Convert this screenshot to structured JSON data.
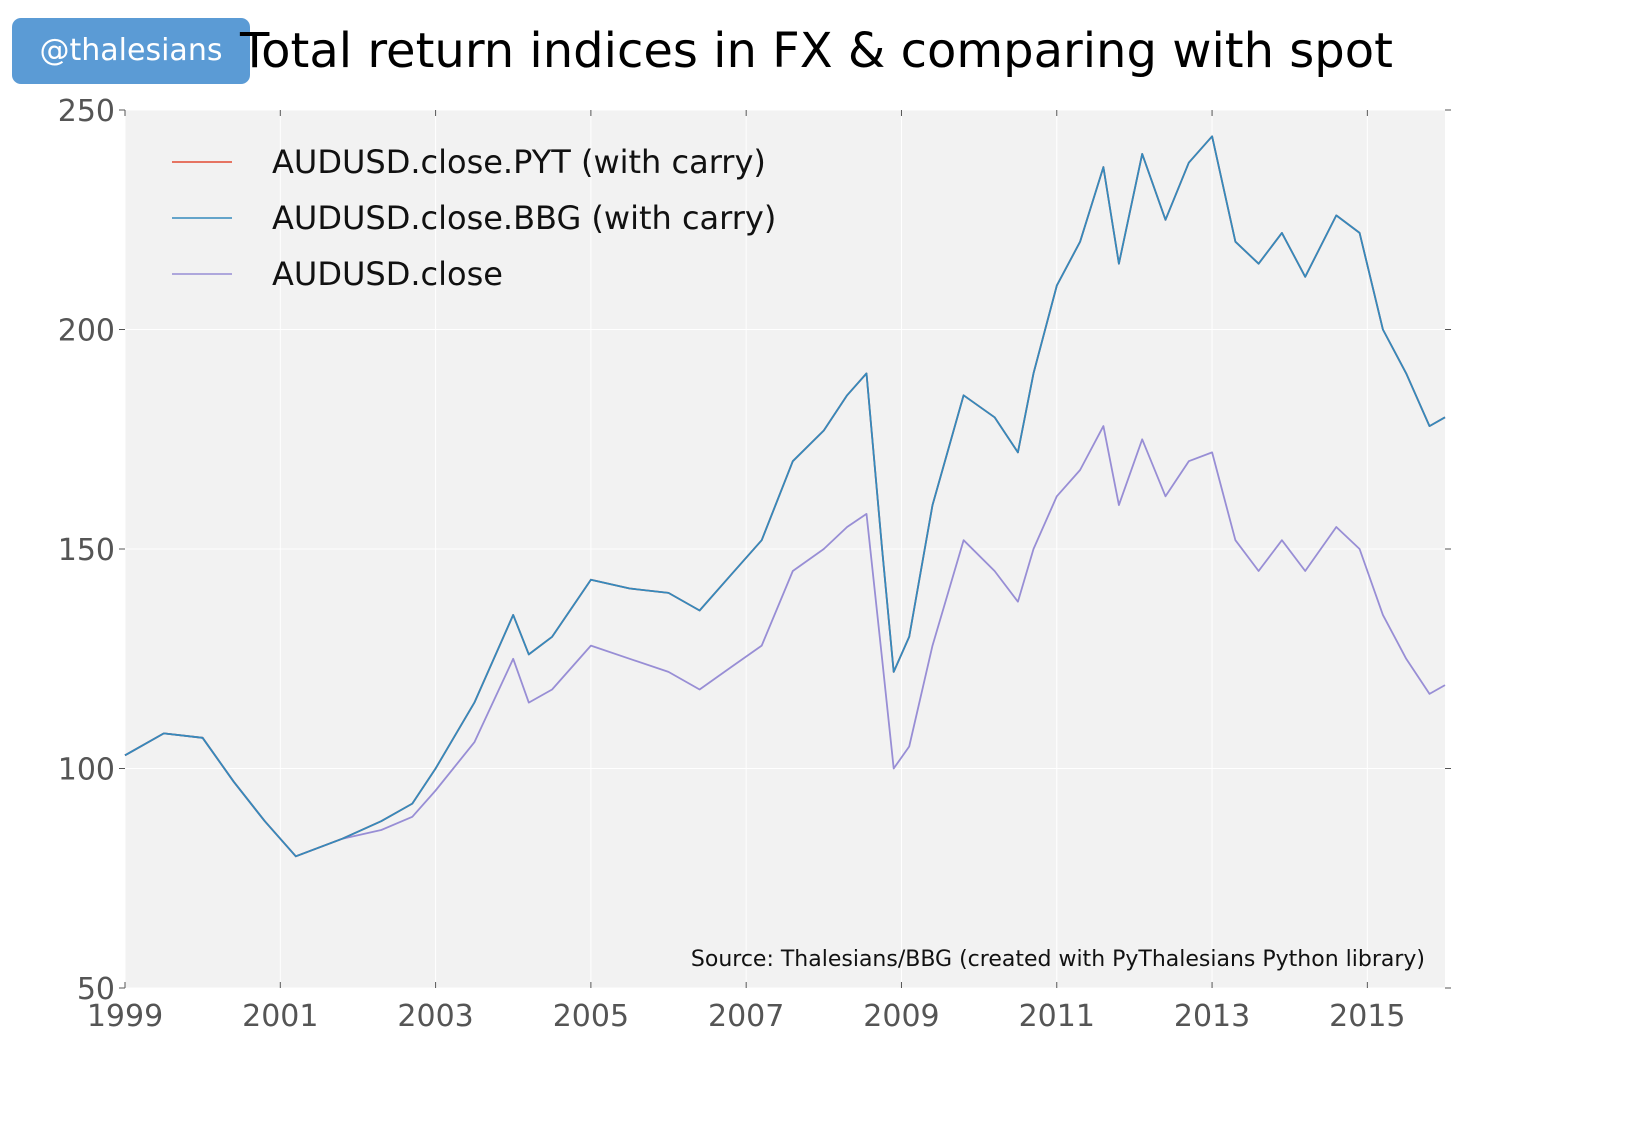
{
  "badge": {
    "text": "@thalesians"
  },
  "chart_data": {
    "type": "line",
    "title": "Total return indices in FX & comparing with spot",
    "xlabel": "",
    "ylabel": "",
    "xlim": [
      1999.0,
      2016.0
    ],
    "ylim": [
      50,
      250
    ],
    "x_ticks": [
      "1999",
      "2001",
      "2003",
      "2005",
      "2007",
      "2009",
      "2011",
      "2013",
      "2015"
    ],
    "y_ticks": [
      "50",
      "100",
      "150",
      "200",
      "250"
    ],
    "grid": true,
    "legend_position": "top-left",
    "annotation": "Source: Thalesians/BBG (created with PyThalesians Python library)",
    "series": [
      {
        "name": "AUDUSD.close.PYT (with carry)",
        "color": "#e24a33",
        "x": [
          1999.0,
          1999.5,
          2000.0,
          2000.4,
          2000.8,
          2001.2,
          2001.8,
          2002.3,
          2002.7,
          2003.0,
          2003.5,
          2004.0,
          2004.2,
          2004.5,
          2005.0,
          2005.5,
          2006.0,
          2006.4,
          2006.8,
          2007.2,
          2007.6,
          2008.0,
          2008.3,
          2008.55,
          2008.75,
          2008.9,
          2009.1,
          2009.4,
          2009.8,
          2010.2,
          2010.5,
          2010.7,
          2011.0,
          2011.3,
          2011.6,
          2011.8,
          2012.1,
          2012.4,
          2012.7,
          2013.0,
          2013.3,
          2013.6,
          2013.9,
          2014.2,
          2014.6,
          2014.9,
          2015.2,
          2015.5,
          2015.8,
          2016.0
        ],
        "values": [
          103,
          108,
          107,
          97,
          88,
          80,
          84,
          88,
          92,
          100,
          115,
          135,
          126,
          130,
          143,
          141,
          140,
          136,
          144,
          152,
          170,
          177,
          185,
          190,
          150,
          122,
          130,
          160,
          185,
          180,
          172,
          190,
          210,
          220,
          237,
          215,
          240,
          225,
          238,
          244,
          220,
          215,
          222,
          212,
          226,
          222,
          200,
          190,
          178,
          180
        ]
      },
      {
        "name": "AUDUSD.close.BBG (with carry)",
        "color": "#348abd",
        "x": [
          1999.0,
          1999.5,
          2000.0,
          2000.4,
          2000.8,
          2001.2,
          2001.8,
          2002.3,
          2002.7,
          2003.0,
          2003.5,
          2004.0,
          2004.2,
          2004.5,
          2005.0,
          2005.5,
          2006.0,
          2006.4,
          2006.8,
          2007.2,
          2007.6,
          2008.0,
          2008.3,
          2008.55,
          2008.75,
          2008.9,
          2009.1,
          2009.4,
          2009.8,
          2010.2,
          2010.5,
          2010.7,
          2011.0,
          2011.3,
          2011.6,
          2011.8,
          2012.1,
          2012.4,
          2012.7,
          2013.0,
          2013.3,
          2013.6,
          2013.9,
          2014.2,
          2014.6,
          2014.9,
          2015.2,
          2015.5,
          2015.8,
          2016.0
        ],
        "values": [
          103,
          108,
          107,
          97,
          88,
          80,
          84,
          88,
          92,
          100,
          115,
          135,
          126,
          130,
          143,
          141,
          140,
          136,
          144,
          152,
          170,
          177,
          185,
          190,
          150,
          122,
          130,
          160,
          185,
          180,
          172,
          190,
          210,
          220,
          237,
          215,
          240,
          225,
          238,
          244,
          220,
          215,
          222,
          212,
          226,
          222,
          200,
          190,
          178,
          180
        ]
      },
      {
        "name": "AUDUSD.close",
        "color": "#988ed5",
        "x": [
          1999.0,
          1999.5,
          2000.0,
          2000.4,
          2000.8,
          2001.2,
          2001.8,
          2002.3,
          2002.7,
          2003.0,
          2003.5,
          2004.0,
          2004.2,
          2004.5,
          2005.0,
          2005.5,
          2006.0,
          2006.4,
          2006.8,
          2007.2,
          2007.6,
          2008.0,
          2008.3,
          2008.55,
          2008.75,
          2008.9,
          2009.1,
          2009.4,
          2009.8,
          2010.2,
          2010.5,
          2010.7,
          2011.0,
          2011.3,
          2011.6,
          2011.8,
          2012.1,
          2012.4,
          2012.7,
          2013.0,
          2013.3,
          2013.6,
          2013.9,
          2014.2,
          2014.6,
          2014.9,
          2015.2,
          2015.5,
          2015.8,
          2016.0
        ],
        "values": [
          103,
          108,
          107,
          97,
          88,
          80,
          84,
          86,
          89,
          95,
          106,
          125,
          115,
          118,
          128,
          125,
          122,
          118,
          123,
          128,
          145,
          150,
          155,
          158,
          125,
          100,
          105,
          128,
          152,
          145,
          138,
          150,
          162,
          168,
          178,
          160,
          175,
          162,
          170,
          172,
          152,
          145,
          152,
          145,
          155,
          150,
          135,
          125,
          117,
          119
        ]
      }
    ]
  }
}
